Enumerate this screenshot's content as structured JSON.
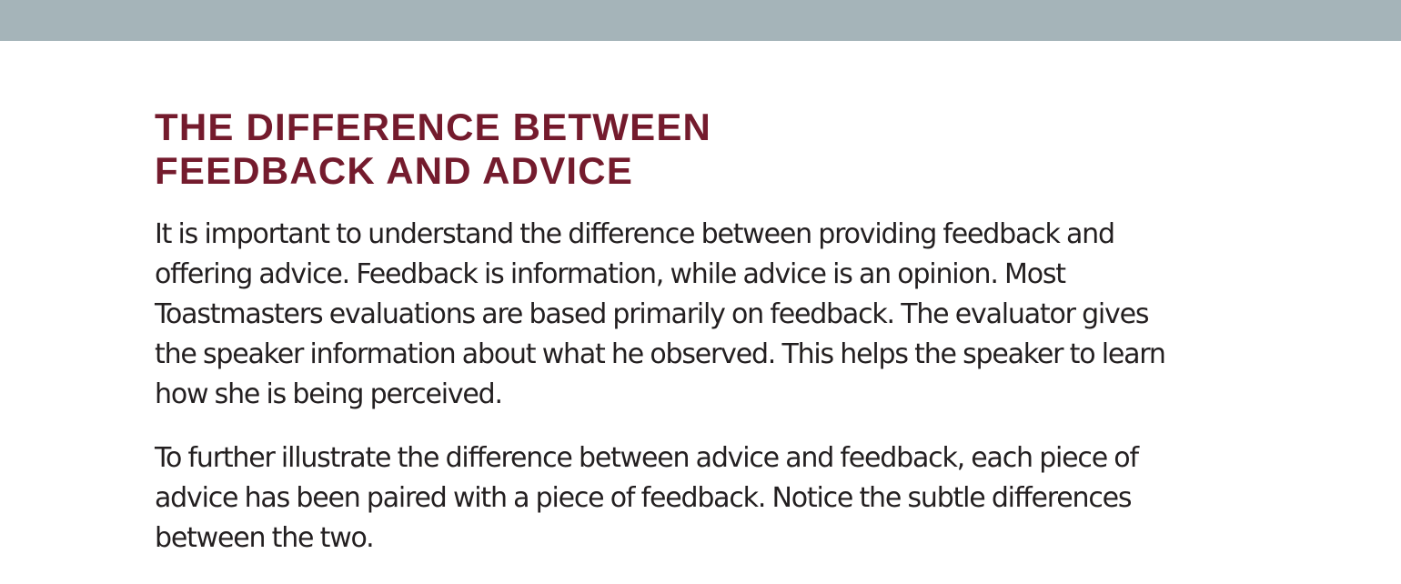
{
  "section": {
    "title_lines": [
      "THE DIFFERENCE BETWEEN",
      "FEEDBACK AND ADVICE"
    ],
    "paragraphs": [
      [
        "It is important to understand the difference between providing feedback and",
        "offering advice. Feedback is information, while advice is an opinion. Most",
        "Toastmasters evaluations are based primarily on feedback. The evaluator gives",
        "the speaker information about what he observed. This helps the speaker to learn",
        "how she is being perceived."
      ],
      [
        "To further illustrate the difference between advice and feedback, each piece of",
        "advice has been paired with a piece of feedback. Notice the subtle differences",
        "between the two."
      ]
    ]
  },
  "colors": {
    "header_bar": "#a5b4b9",
    "title": "#741b2d",
    "body_text": "#231f20"
  }
}
